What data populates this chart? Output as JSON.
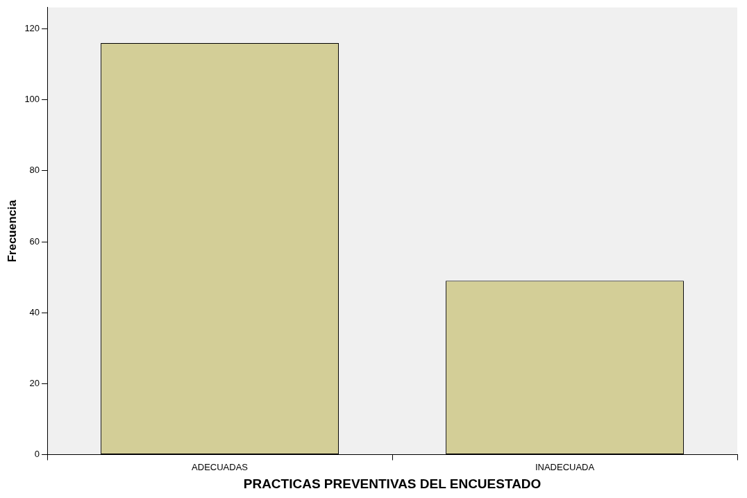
{
  "chart_data": {
    "type": "bar",
    "xlabel": "PRACTICAS PREVENTIVAS DEL ENCUESTADO",
    "ylabel": "Frecuencia",
    "categories": [
      "ADECUADAS",
      "INADECUADA"
    ],
    "values": [
      116,
      49
    ],
    "color": "#d3ce97",
    "ylim": [
      0,
      126
    ],
    "yticks": [
      0,
      20,
      40,
      60,
      80,
      100,
      120
    ],
    "grid": false,
    "legend": false
  }
}
